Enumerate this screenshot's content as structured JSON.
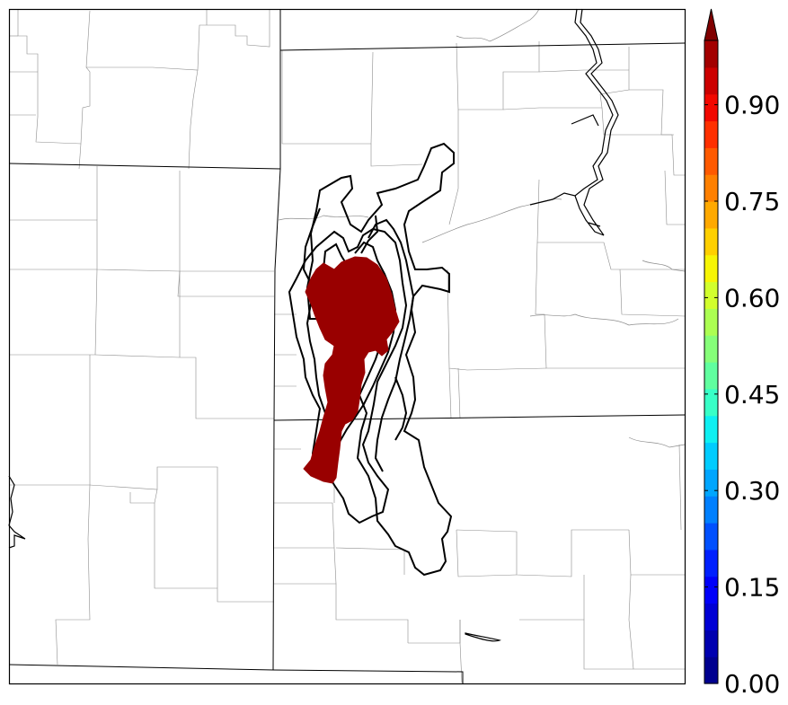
{
  "map": {
    "colors": {
      "probability_fill": "#990000",
      "contour_line": "#000000",
      "county_line": "#8c8c8c",
      "state_line": "#000000",
      "background": "#ffffff"
    }
  },
  "colorbar": {
    "range": [
      0.0,
      1.0
    ],
    "extend": "max",
    "tick_labels": [
      "0.00",
      "0.15",
      "0.30",
      "0.45",
      "0.60",
      "0.75",
      "0.90"
    ],
    "tick_values": [
      0.0,
      0.15,
      0.3,
      0.45,
      0.6,
      0.75,
      0.9
    ],
    "levels": [
      "#00008f",
      "#0000b0",
      "#0000d5",
      "#0000fa",
      "#0020ff",
      "#0050ff",
      "#0080ff",
      "#00a6ff",
      "#00ccff",
      "#0ef0f2",
      "#38ffc7",
      "#60ff9f",
      "#86ff79",
      "#acff52",
      "#d2ff2d",
      "#f7f505",
      "#ffd000",
      "#ffa900",
      "#ff8000",
      "#ff5a00",
      "#ff3000",
      "#f20800",
      "#cc0000",
      "#a30000"
    ],
    "extension_color": "#800000"
  }
}
